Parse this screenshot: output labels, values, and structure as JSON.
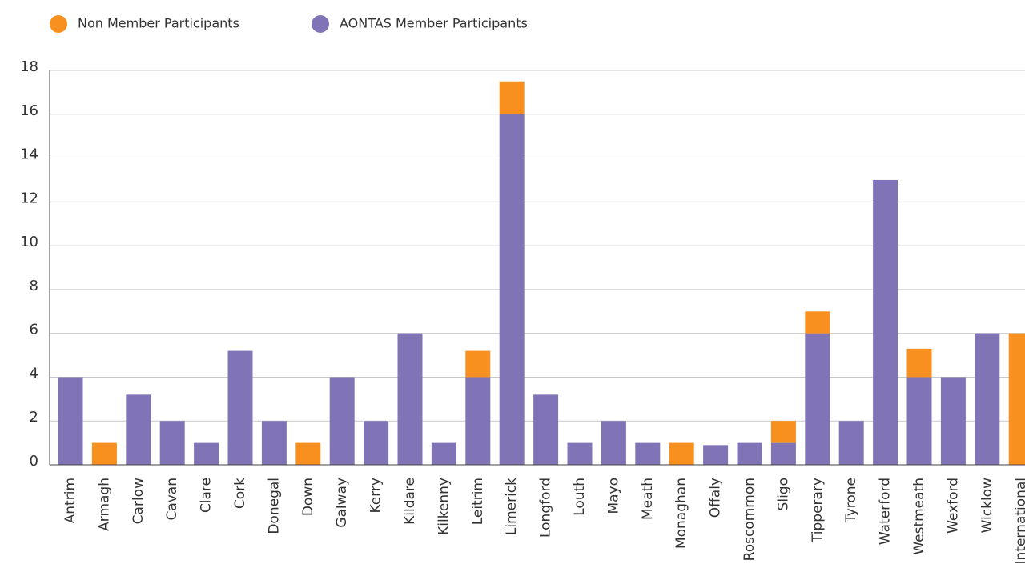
{
  "chart_data": {
    "type": "stacked_bar",
    "categories": [
      "Antrim",
      "Armagh",
      "Carlow",
      "Cavan",
      "Clare",
      "Cork",
      "Donegal",
      "Down",
      "Galway",
      "Kerry",
      "Kildare",
      "Kilkenny",
      "Leitrim",
      "Limerick",
      "Longford",
      "Louth",
      "Mayo",
      "Meath",
      "Monaghan",
      "Offaly",
      "Roscommon",
      "Sligo",
      "Tipperary",
      "Tyrone",
      "Waterford",
      "Westmeath",
      "Wexford",
      "Wicklow",
      "International"
    ],
    "series": [
      {
        "name": "Non Member Participants",
        "color": "#f7901e",
        "values": [
          0,
          1,
          0,
          0,
          0,
          0,
          0,
          1,
          0,
          0,
          0,
          0,
          1.2,
          1.5,
          0,
          0,
          0,
          0,
          1,
          0,
          0,
          1,
          1,
          0,
          0,
          1.3,
          0,
          0,
          6
        ]
      },
      {
        "name": "AONTAS Member Participants",
        "color": "#8073b6",
        "values": [
          4,
          0,
          3.2,
          2,
          1,
          5.2,
          2,
          0,
          4,
          2,
          6,
          1,
          4,
          16,
          3.2,
          1,
          2,
          1,
          0,
          0.9,
          1,
          1,
          6,
          2,
          13,
          4,
          4,
          6,
          0
        ]
      }
    ],
    "ylim": [
      0,
      18
    ],
    "yticks": [
      0,
      2,
      4,
      6,
      8,
      10,
      12,
      14,
      16,
      18
    ],
    "grid": true
  }
}
